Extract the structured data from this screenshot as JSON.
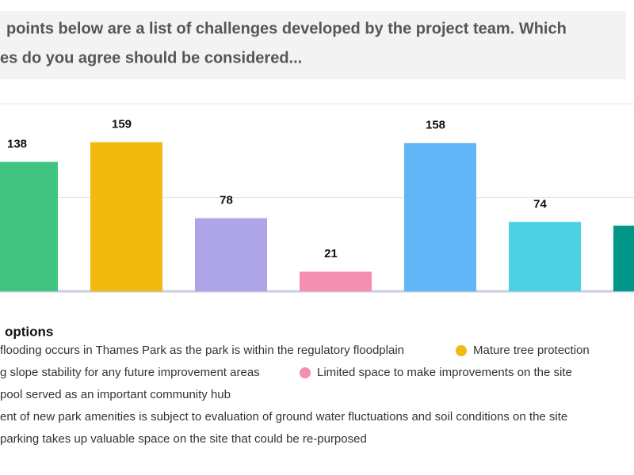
{
  "chart_data": {
    "type": "bar",
    "title_lines": [
      "points below are a list of challenges developed by the project team. Which",
      "es do you agree should be considered..."
    ],
    "legend_title": "options",
    "categories": [
      "flooding occurs in Thames Park as the park is within the regulatory floodplain",
      "Mature tree protection",
      "g slope stability for any future improvement areas",
      "Limited space to make improvements on the site",
      "pool served as an important community hub",
      "ent of new park amenities is subject to evaluation of ground water fluctuations and soil conditions on the site",
      "parking takes up valuable space on the site that could be re-purposed"
    ],
    "values": [
      138,
      159,
      78,
      21,
      158,
      74,
      70
    ],
    "colors": [
      "#41c47f",
      "#f2b90f",
      "#ada5e6",
      "#f48fb1",
      "#62b5f6",
      "#4dd0e1",
      "#009688"
    ],
    "ylim": [
      0,
      200
    ],
    "yticks": [
      0,
      100,
      200
    ],
    "grid": true
  }
}
